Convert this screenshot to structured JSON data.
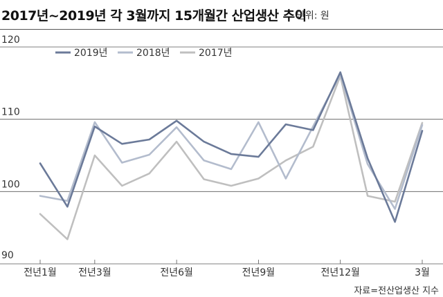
{
  "header": {
    "title": "2017년~2019년 각 3월까지 15개월간 산업생산 추이",
    "unit": "단위: 원"
  },
  "source": "자료=전산업생산 지수",
  "colors": {
    "s2019": "#6b7a99",
    "s2018": "#b3bccd",
    "s2017": "#bfbfbf",
    "grid": "#555555",
    "text": "#333333"
  },
  "chart_data": {
    "type": "line",
    "title": "2017년~2019년 각 3월까지 15개월간 산업생산 추이",
    "ylim": [
      90,
      120
    ],
    "yticks": [
      90,
      100,
      110,
      120
    ],
    "grid": "horizontal",
    "legend": "top",
    "x": [
      1,
      2,
      3,
      4,
      5,
      6,
      7,
      8,
      9,
      10,
      11,
      12,
      13,
      14,
      15
    ],
    "tick_labels": [
      {
        "x": 1,
        "label": "전년1월"
      },
      {
        "x": 3,
        "label": "전년3월"
      },
      {
        "x": 6,
        "label": "전년6월"
      },
      {
        "x": 9,
        "label": "전년9월"
      },
      {
        "x": 12,
        "label": "전년12월"
      },
      {
        "x": 15,
        "label": "3월"
      }
    ],
    "series": [
      {
        "name": "2019년",
        "color": "#6b7a99",
        "values": [
          103.9,
          97.9,
          109.0,
          106.6,
          107.2,
          109.8,
          106.9,
          105.2,
          104.8,
          109.3,
          108.5,
          116.5,
          104.6,
          95.8,
          108.4
        ]
      },
      {
        "name": "2018년",
        "color": "#b3bccd",
        "values": [
          99.4,
          98.7,
          109.6,
          104.0,
          105.1,
          108.9,
          104.3,
          103.1,
          109.6,
          101.8,
          109.0,
          116.2,
          103.8,
          97.6,
          109.2
        ]
      },
      {
        "name": "2017년",
        "color": "#bfbfbf",
        "values": [
          96.9,
          93.4,
          105.0,
          100.8,
          102.5,
          106.9,
          101.7,
          100.8,
          101.8,
          104.3,
          106.2,
          116.0,
          99.4,
          98.6,
          109.5
        ]
      }
    ]
  }
}
